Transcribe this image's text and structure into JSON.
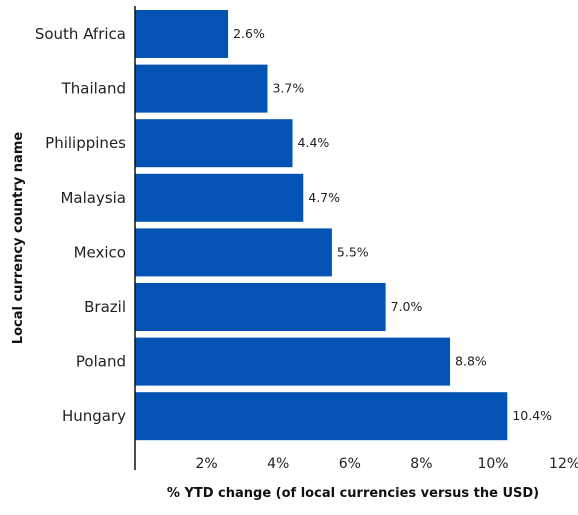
{
  "chart_data": {
    "type": "bar",
    "orientation": "horizontal",
    "categories": [
      "South Africa",
      "Thailand",
      "Philippines",
      "Malaysia",
      "Mexico",
      "Brazil",
      "Poland",
      "Hungary"
    ],
    "values": [
      2.6,
      3.7,
      4.4,
      4.7,
      5.5,
      7.0,
      8.8,
      10.4
    ],
    "value_labels": [
      "2.6%",
      "3.7%",
      "4.4%",
      "4.7%",
      "5.5%",
      "7.0%",
      "8.8%",
      "10.4%"
    ],
    "x_ticks": [
      2,
      4,
      6,
      8,
      10,
      12
    ],
    "x_tick_labels": [
      "2%",
      "4%",
      "6%",
      "8%",
      "10%",
      "12%"
    ],
    "xlim": [
      0,
      12
    ],
    "xlabel": "% YTD change (of local currencies versus the USD)",
    "ylabel": "Local currency country name",
    "grid": false,
    "colors": {
      "bar": "#0353b4",
      "axis": "#111111"
    }
  }
}
